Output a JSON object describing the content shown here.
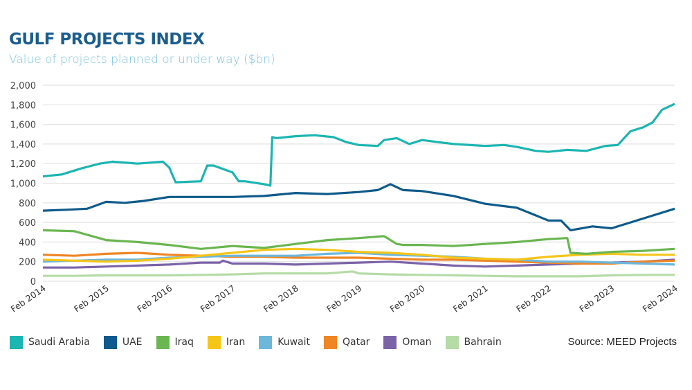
{
  "header": {
    "title": "GULF PROJECTS INDEX",
    "subtitle": "Value of projects planned or under way ($bn)"
  },
  "source": "Source: MEED Projects",
  "chart_data": {
    "type": "line",
    "title": "GULF PROJECTS INDEX",
    "subtitle": "Value of projects planned or under way ($bn)",
    "xlabel": "",
    "ylabel": "$bn",
    "ylim": [
      0,
      2000
    ],
    "xlim": [
      2014,
      2024
    ],
    "grid": true,
    "legend_position": "bottom",
    "y_ticks": [
      0,
      200,
      400,
      600,
      800,
      1000,
      1200,
      1400,
      1600,
      1800,
      2000
    ],
    "y_tick_labels": [
      "0",
      "200",
      "400",
      "600",
      "800",
      "1,000",
      "1,200",
      "1,400",
      "1,600",
      "1,800",
      "2,000"
    ],
    "x_ticks": [
      2014,
      2015,
      2016,
      2017,
      2018,
      2019,
      2020,
      2021,
      2022,
      2023,
      2024
    ],
    "x_tick_labels": [
      "Feb 2014",
      "Feb 2015",
      "Feb 2016",
      "Feb 2017",
      "Feb 2018",
      "Feb 2019",
      "Feb 2020",
      "Feb 2021",
      "Feb 2022",
      "Feb 2023",
      "Feb 2024"
    ],
    "series": [
      {
        "name": "Saudi Arabia",
        "color": "#1bb5b2",
        "x": [
          2014,
          2014.3,
          2014.6,
          2014.9,
          2015.1,
          2015.5,
          2015.9,
          2016.0,
          2016.1,
          2016.5,
          2016.6,
          2016.7,
          2017.0,
          2017.1,
          2017.2,
          2017.5,
          2017.6,
          2017.63,
          2017.7,
          2018.0,
          2018.3,
          2018.6,
          2018.8,
          2019.0,
          2019.3,
          2019.4,
          2019.6,
          2019.8,
          2020.0,
          2020.5,
          2021.0,
          2021.3,
          2021.5,
          2021.8,
          2022.0,
          2022.3,
          2022.6,
          2022.9,
          2023.1,
          2023.3,
          2023.5,
          2023.65,
          2023.8,
          2024.0
        ],
        "values": [
          1070,
          1090,
          1150,
          1200,
          1220,
          1200,
          1220,
          1160,
          1010,
          1020,
          1180,
          1180,
          1110,
          1020,
          1020,
          990,
          975,
          1470,
          1460,
          1480,
          1490,
          1470,
          1420,
          1390,
          1380,
          1440,
          1460,
          1400,
          1440,
          1400,
          1380,
          1390,
          1370,
          1330,
          1320,
          1340,
          1330,
          1380,
          1390,
          1530,
          1570,
          1620,
          1750,
          1810
        ]
      },
      {
        "name": "UAE",
        "color": "#0e5a8a",
        "x": [
          2014,
          2014.4,
          2014.7,
          2015.0,
          2015.3,
          2015.6,
          2016.0,
          2016.5,
          2017.0,
          2017.5,
          2018.0,
          2018.5,
          2019.0,
          2019.3,
          2019.5,
          2019.7,
          2020.0,
          2020.5,
          2021.0,
          2021.5,
          2022.0,
          2022.2,
          2022.35,
          2022.7,
          2023.0,
          2023.3,
          2023.6,
          2024.0
        ],
        "values": [
          720,
          730,
          740,
          810,
          800,
          820,
          860,
          860,
          860,
          870,
          900,
          890,
          910,
          930,
          990,
          930,
          920,
          870,
          790,
          750,
          620,
          620,
          520,
          560,
          540,
          600,
          660,
          740
        ]
      },
      {
        "name": "Iraq",
        "color": "#6ab650",
        "x": [
          2014,
          2014.5,
          2015.0,
          2015.5,
          2016.0,
          2016.5,
          2017.0,
          2017.5,
          2018.0,
          2018.5,
          2019.0,
          2019.4,
          2019.6,
          2019.7,
          2020.0,
          2020.5,
          2021.0,
          2021.5,
          2022.0,
          2022.3,
          2022.35,
          2022.6,
          2023.0,
          2023.5,
          2024.0
        ],
        "values": [
          520,
          510,
          420,
          400,
          370,
          330,
          360,
          340,
          380,
          420,
          440,
          460,
          380,
          370,
          370,
          360,
          380,
          400,
          430,
          440,
          290,
          280,
          300,
          310,
          330
        ]
      },
      {
        "name": "Iran",
        "color": "#f5c518",
        "x": [
          2014,
          2014.5,
          2015.0,
          2015.5,
          2016.0,
          2016.5,
          2017.0,
          2017.5,
          2018.0,
          2018.5,
          2019.0,
          2019.5,
          2020.0,
          2020.5,
          2021.0,
          2021.5,
          2022.0,
          2022.5,
          2023.0,
          2023.5,
          2024.0
        ],
        "values": [
          220,
          210,
          200,
          210,
          230,
          260,
          290,
          320,
          330,
          320,
          300,
          290,
          270,
          240,
          230,
          220,
          250,
          270,
          280,
          270,
          270
        ]
      },
      {
        "name": "Kuwait",
        "color": "#6cb7dc",
        "x": [
          2014,
          2014.5,
          2015.0,
          2015.5,
          2016.0,
          2016.5,
          2017.0,
          2017.5,
          2018.0,
          2018.5,
          2019.0,
          2019.5,
          2020.0,
          2020.5,
          2021.0,
          2021.5,
          2022.0,
          2022.5,
          2023.0,
          2023.5,
          2024.0
        ],
        "values": [
          200,
          210,
          220,
          220,
          240,
          250,
          260,
          260,
          260,
          280,
          290,
          270,
          260,
          250,
          230,
          220,
          200,
          200,
          190,
          180,
          170
        ]
      },
      {
        "name": "Qatar",
        "color": "#ef8523",
        "x": [
          2014,
          2014.5,
          2015.0,
          2015.5,
          2016.0,
          2016.5,
          2017.0,
          2017.5,
          2018.0,
          2018.5,
          2019.0,
          2019.5,
          2020.0,
          2020.5,
          2021.0,
          2021.5,
          2022.0,
          2022.5,
          2023.0,
          2023.5,
          2024.0
        ],
        "values": [
          270,
          260,
          280,
          290,
          270,
          260,
          250,
          250,
          240,
          240,
          240,
          230,
          220,
          220,
          210,
          200,
          190,
          180,
          180,
          200,
          210
        ]
      },
      {
        "name": "Oman",
        "color": "#7b63a8",
        "x": [
          2014,
          2014.5,
          2015.0,
          2015.5,
          2016.0,
          2016.5,
          2016.8,
          2016.85,
          2017.0,
          2017.5,
          2018.0,
          2018.5,
          2019.0,
          2019.5,
          2020.0,
          2020.5,
          2021.0,
          2021.5,
          2022.0,
          2022.5,
          2023.0,
          2023.5,
          2024.0
        ],
        "values": [
          140,
          140,
          150,
          160,
          170,
          190,
          190,
          210,
          180,
          180,
          170,
          180,
          190,
          200,
          180,
          160,
          150,
          160,
          170,
          180,
          190,
          200,
          220
        ]
      },
      {
        "name": "Bahrain",
        "color": "#b5dba6",
        "x": [
          2014,
          2014.5,
          2015.0,
          2015.5,
          2016.0,
          2016.5,
          2017.0,
          2017.5,
          2018.0,
          2018.5,
          2018.9,
          2019.0,
          2019.5,
          2020.0,
          2020.5,
          2021.0,
          2021.5,
          2022.0,
          2022.5,
          2023.0,
          2023.5,
          2024.0
        ],
        "values": [
          55,
          55,
          60,
          60,
          60,
          65,
          70,
          80,
          80,
          80,
          100,
          80,
          70,
          65,
          60,
          55,
          50,
          50,
          50,
          60,
          65,
          65
        ]
      }
    ]
  }
}
